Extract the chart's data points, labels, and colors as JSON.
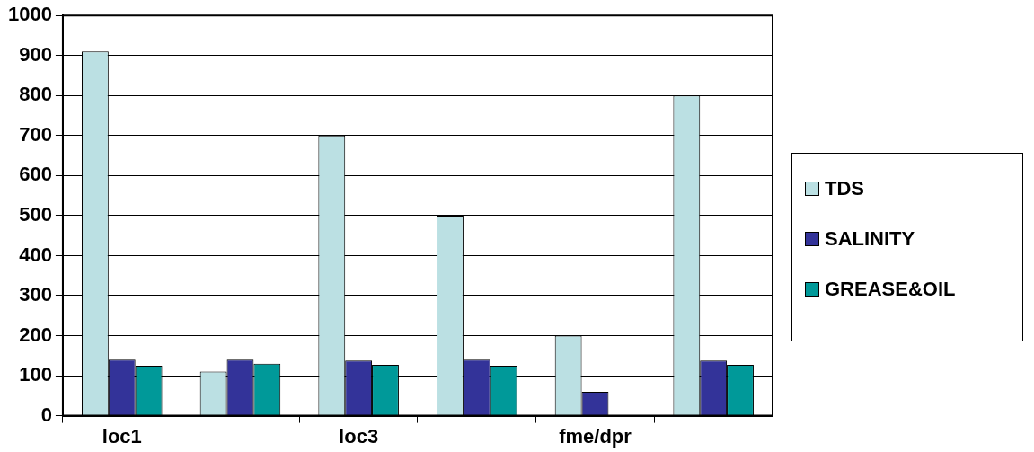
{
  "chart_data": {
    "type": "bar",
    "categories": [
      "loc1",
      null,
      "loc3",
      null,
      "fme/dpr",
      null
    ],
    "series": [
      {
        "name": "TDS",
        "color": "#bbe0e3",
        "values": [
          910,
          110,
          700,
          500,
          200,
          800
        ]
      },
      {
        "name": "SALINITY",
        "color": "#333399",
        "values": [
          140,
          140,
          138,
          140,
          60,
          138
        ]
      },
      {
        "name": "GREASE&OIL",
        "color": "#009999",
        "values": [
          125,
          130,
          127,
          125,
          null,
          127
        ]
      }
    ],
    "ylim": [
      0,
      1000
    ],
    "yticks": [
      0,
      100,
      200,
      300,
      400,
      500,
      600,
      700,
      800,
      900,
      1000
    ],
    "grid": "y",
    "legend": "right"
  }
}
